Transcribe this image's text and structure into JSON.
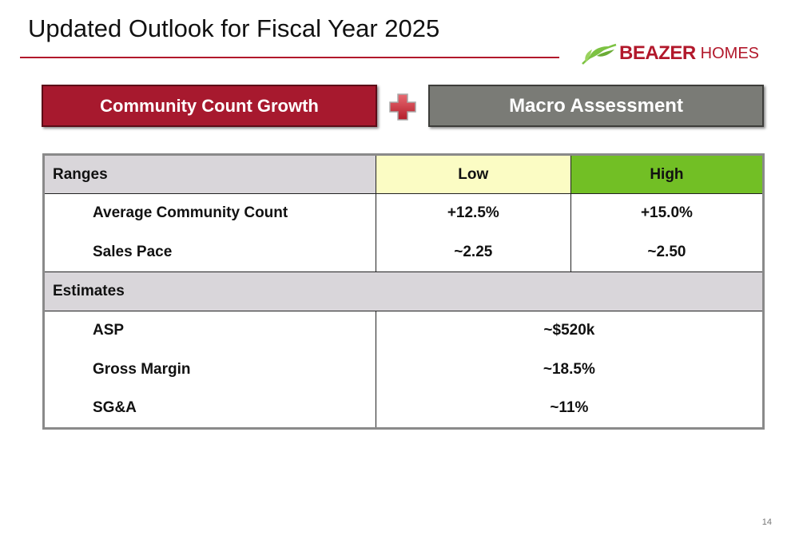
{
  "slide": {
    "title": "Updated Outlook for Fiscal Year 2025",
    "page_number": "14"
  },
  "logo": {
    "brand": "BEAZER",
    "suffix": "HOMES",
    "leaf_color": "#7cc242",
    "brand_color": "#b2182b"
  },
  "banners": {
    "left": "Community Count Growth",
    "right": "Macro Assessment",
    "plus_icon": "plus-icon"
  },
  "table": {
    "ranges_label": "Ranges",
    "low_label": "Low",
    "high_label": "High",
    "range_rows": [
      {
        "label": "Average Community Count",
        "low": "+12.5%",
        "high": "+15.0%"
      },
      {
        "label": "Sales Pace",
        "low": "~2.25",
        "high": "~2.50"
      }
    ],
    "estimates_label": "Estimates",
    "estimate_rows": [
      {
        "label": "ASP",
        "value": "~$520k"
      },
      {
        "label": "Gross Margin",
        "value": "~18.5%"
      },
      {
        "label": "SG&A",
        "value": "~11%"
      }
    ]
  },
  "colors": {
    "title_rule": "#b2182b",
    "left_banner": "#a7192e",
    "right_banner": "#7a7b76",
    "header_fill": "#d9d6da",
    "low_fill": "#fbfcc4",
    "high_fill": "#72bf25"
  }
}
